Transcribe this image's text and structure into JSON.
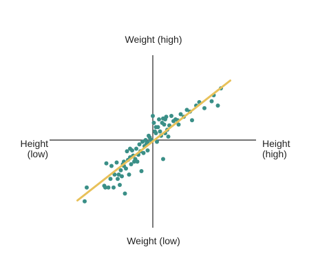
{
  "chart_data": {
    "type": "scatter",
    "title": "",
    "axes": {
      "top_label": "Weight (high)",
      "bottom_label": "Weight (low)",
      "left_label_line1": "Height",
      "left_label_line2": "(low)",
      "right_label_line1": "Height",
      "right_label_line2": "(high)"
    },
    "xlim": [
      -1,
      1
    ],
    "ylim": [
      -1,
      1
    ],
    "grid": false,
    "legend": "none",
    "colors": {
      "points": "#3a8f87",
      "trend": "#e8c15a",
      "axes": "#222222"
    },
    "trend_line": {
      "x": [
        -0.73,
        0.75
      ],
      "y": [
        -0.7,
        0.69
      ]
    },
    "points": {
      "x": [
        -0.66,
        -0.64,
        -0.47,
        -0.46,
        -0.45,
        -0.43,
        -0.41,
        -0.4,
        -0.38,
        -0.37,
        -0.35,
        -0.34,
        -0.33,
        -0.32,
        -0.31,
        -0.3,
        -0.29,
        -0.28,
        -0.27,
        -0.26,
        -0.25,
        -0.24,
        -0.23,
        -0.22,
        -0.21,
        -0.2,
        -0.19,
        -0.18,
        -0.17,
        -0.16,
        -0.15,
        -0.14,
        -0.13,
        -0.12,
        -0.11,
        -0.1,
        -0.09,
        -0.08,
        -0.07,
        -0.06,
        -0.05,
        -0.04,
        -0.03,
        -0.02,
        -0.01,
        0.0,
        0.01,
        0.02,
        0.03,
        0.04,
        0.05,
        0.06,
        0.07,
        0.08,
        0.09,
        0.1,
        0.11,
        0.12,
        0.13,
        0.14,
        0.15,
        0.16,
        0.18,
        0.2,
        0.22,
        0.24,
        0.27,
        0.3,
        0.33,
        0.36,
        0.38,
        0.42,
        0.45,
        0.5,
        0.57,
        0.59,
        0.63,
        0.66,
        -0.22,
        -0.05,
        0.1,
        0.03,
        -0.28,
        0.12,
        0.25
      ],
      "y": [
        -0.71,
        -0.55,
        -0.53,
        -0.55,
        -0.27,
        -0.55,
        -0.45,
        -0.3,
        -0.55,
        -0.4,
        -0.26,
        -0.45,
        -0.4,
        -0.52,
        -0.35,
        -0.42,
        -0.28,
        -0.3,
        -0.62,
        -0.33,
        -0.13,
        -0.23,
        -0.4,
        -0.2,
        -0.28,
        -0.12,
        -0.18,
        -0.25,
        -0.22,
        -0.1,
        -0.25,
        -0.17,
        -0.05,
        -0.13,
        -0.36,
        -0.02,
        -0.15,
        -0.07,
        0.0,
        -0.04,
        -0.03,
        0.05,
        0.03,
        0.0,
        0.0,
        0.28,
        0.2,
        0.1,
        0.08,
        -0.02,
        0.15,
        0.24,
        0.1,
        0.05,
        0.2,
        0.25,
        0.18,
        0.24,
        0.27,
        0.12,
        0.04,
        0.17,
        0.28,
        0.22,
        0.24,
        0.23,
        0.3,
        0.27,
        0.35,
        0.33,
        0.23,
        0.4,
        0.44,
        0.37,
        0.45,
        0.52,
        0.4,
        0.6,
        -0.1,
        -0.12,
        -0.22,
        0.15,
        -0.25,
        0.08,
        0.18
      ]
    }
  }
}
